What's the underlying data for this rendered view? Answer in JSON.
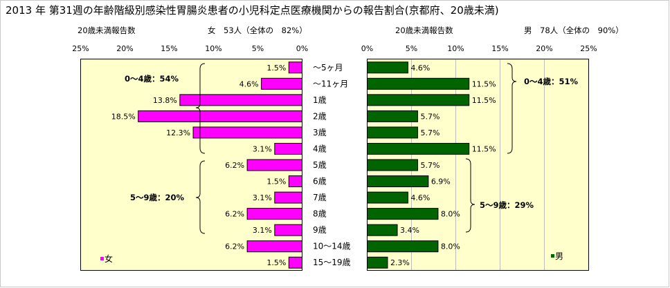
{
  "title": "2013 年 第31週の年齢階級別感染性胃腸炎患者の小児科定点医療機関からの報告割合(京都府、20歳未満)",
  "left_panel": {
    "subtitle_left": "20歳未満報告数",
    "subtitle_right": "女　53人（全体の　82%）",
    "legend": "女",
    "group_labels": [
      "0～4歳：54%",
      "5～9歳：20%"
    ]
  },
  "right_panel": {
    "subtitle_left": "20歳未満報告数",
    "subtitle_right": "男　78人（全体の　90%）",
    "legend": "男",
    "group_labels": [
      "0～4歳：51%",
      "5～9歳：29%"
    ]
  },
  "colors": {
    "female": "#ff00ff",
    "male": "#006400",
    "plot_bg": "#ffffcc"
  },
  "chart_data": [
    {
      "type": "bar",
      "orientation": "horizontal",
      "direction": "right-to-left",
      "categories": [
        "～5ヶ月",
        "～11ヶ月",
        "1歳",
        "2歳",
        "3歳",
        "4歳",
        "5歳",
        "6歳",
        "7歳",
        "8歳",
        "9歳",
        "10～14歳",
        "15～19歳"
      ],
      "series": [
        {
          "name": "女",
          "values": [
            1.5,
            4.6,
            13.8,
            18.5,
            12.3,
            3.1,
            6.2,
            1.5,
            3.1,
            6.2,
            3.1,
            6.2,
            1.5
          ]
        }
      ],
      "data_labels": [
        "1.5%",
        "4.6%",
        "13.8%",
        "18.5%",
        "12.3%",
        "3.1%",
        "6.2%",
        "1.5%",
        "3.1%",
        "6.2%",
        "3.1%",
        "6.2%",
        "1.5%"
      ],
      "xlim": [
        0,
        25
      ],
      "ticks": [
        "25%",
        "20%",
        "15%",
        "10%",
        "5%",
        "0%"
      ],
      "legend_position": "bottom-left",
      "grid": false
    },
    {
      "type": "bar",
      "orientation": "horizontal",
      "direction": "left-to-right",
      "categories": [
        "～5ヶ月",
        "～11ヶ月",
        "1歳",
        "2歳",
        "3歳",
        "4歳",
        "5歳",
        "6歳",
        "7歳",
        "8歳",
        "9歳",
        "10～14歳",
        "15～19歳"
      ],
      "series": [
        {
          "name": "男",
          "values": [
            4.6,
            11.5,
            11.5,
            5.7,
            5.7,
            11.5,
            5.7,
            6.9,
            4.6,
            8.0,
            3.4,
            8.0,
            2.3
          ]
        }
      ],
      "data_labels": [
        "4.6%",
        "11.5%",
        "11.5%",
        "5.7%",
        "5.7%",
        "11.5%",
        "5.7%",
        "6.9%",
        "4.6%",
        "8.0%",
        "3.4%",
        "8.0%",
        "2.3%"
      ],
      "xlim": [
        0,
        25
      ],
      "ticks": [
        "0%",
        "5%",
        "10%",
        "15%",
        "20%",
        "25%"
      ],
      "legend_position": "bottom-right",
      "grid": true
    }
  ]
}
